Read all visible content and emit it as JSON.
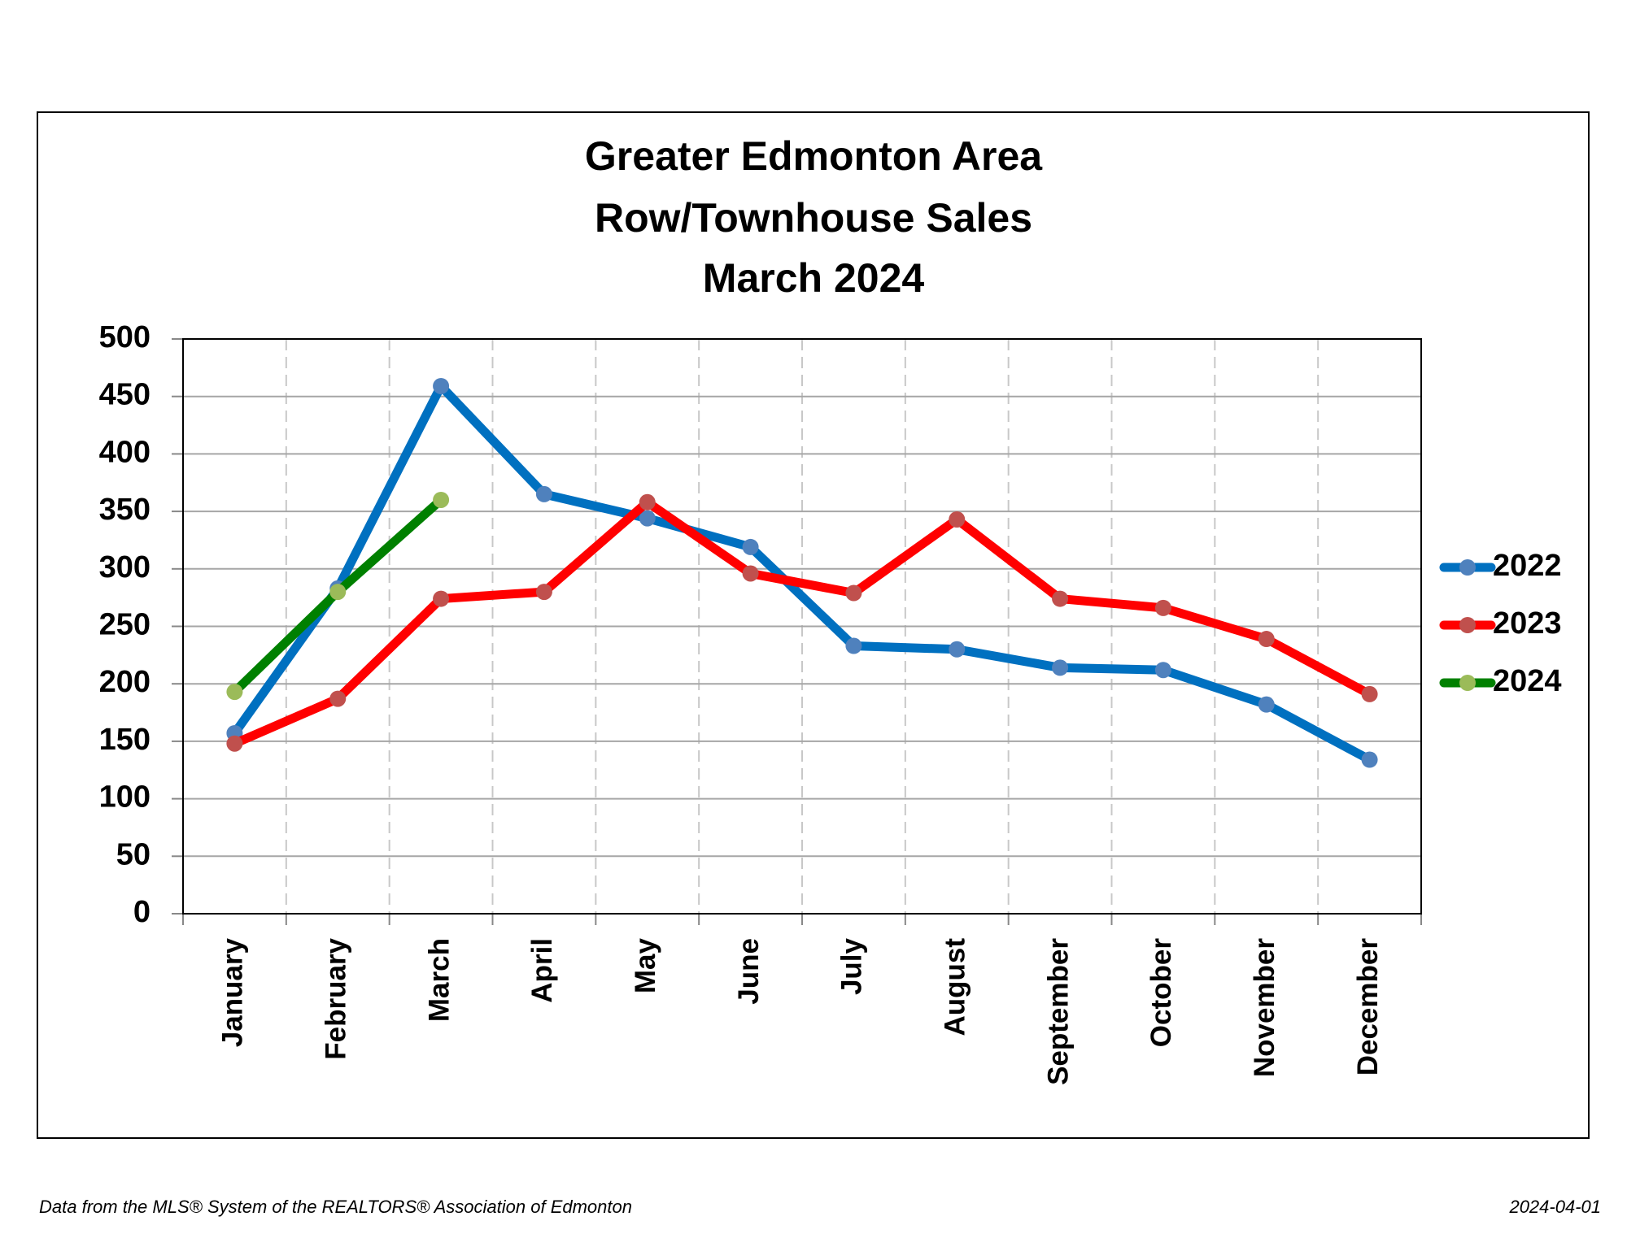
{
  "chart_data": {
    "type": "line",
    "title": [
      "Greater Edmonton Area",
      "Row/Townhouse Sales",
      "March 2024"
    ],
    "categories": [
      "January",
      "February",
      "March",
      "April",
      "May",
      "June",
      "July",
      "August",
      "September",
      "October",
      "November",
      "December"
    ],
    "series": [
      {
        "name": "2022",
        "color": "#0070c0",
        "marker_color": "#4f81bd",
        "values": [
          157,
          283,
          459,
          365,
          344,
          319,
          233,
          230,
          214,
          212,
          182,
          134
        ]
      },
      {
        "name": "2023",
        "color": "#ff0000",
        "marker_color": "#c0504d",
        "values": [
          148,
          187,
          274,
          280,
          358,
          296,
          279,
          343,
          274,
          266,
          239,
          191
        ]
      },
      {
        "name": "2024",
        "color": "#008000",
        "marker_color": "#9bbb59",
        "values": [
          193,
          280,
          360,
          null,
          null,
          null,
          null,
          null,
          null,
          null,
          null,
          null
        ]
      }
    ],
    "ylim": [
      0,
      500
    ],
    "yticks": [
      0,
      50,
      100,
      150,
      200,
      250,
      300,
      350,
      400,
      450,
      500
    ],
    "grid": true,
    "legend": "right",
    "source": "Data from the MLS® System of the REALTORS® Association of Edmonton",
    "date": "2024-04-01"
  }
}
